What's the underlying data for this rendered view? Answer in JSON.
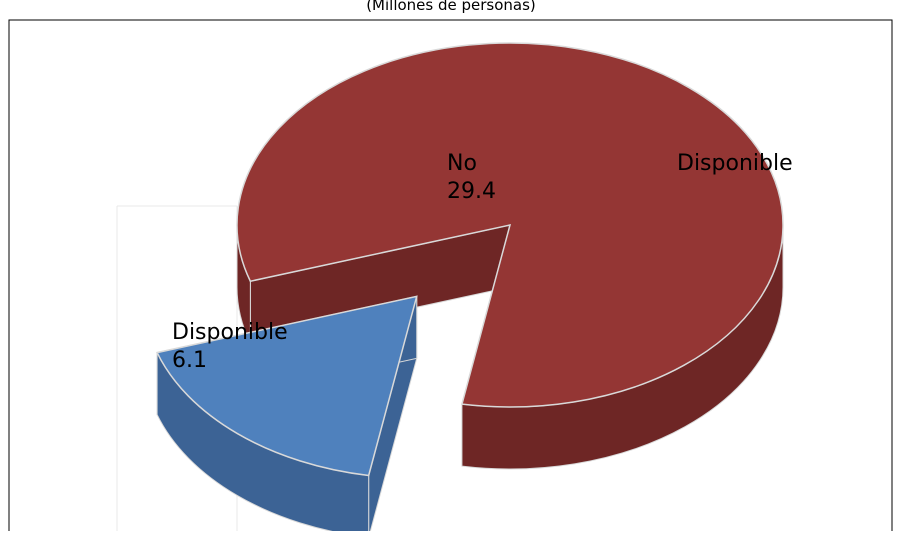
{
  "chart_data": {
    "type": "pie",
    "subtitle": "(Millones de personas)",
    "slices": [
      {
        "label_lines": [
          "No",
          "29.4"
        ],
        "value": 29.4,
        "color": "#943634",
        "side_color": "#6e2625"
      },
      {
        "label_lines": [
          "Disponible",
          "6.1"
        ],
        "value": 6.1,
        "color": "#4f81bd",
        "side_color": "#3c6395"
      }
    ],
    "extra_label": "Disponible",
    "grid": false,
    "legend": "none"
  }
}
